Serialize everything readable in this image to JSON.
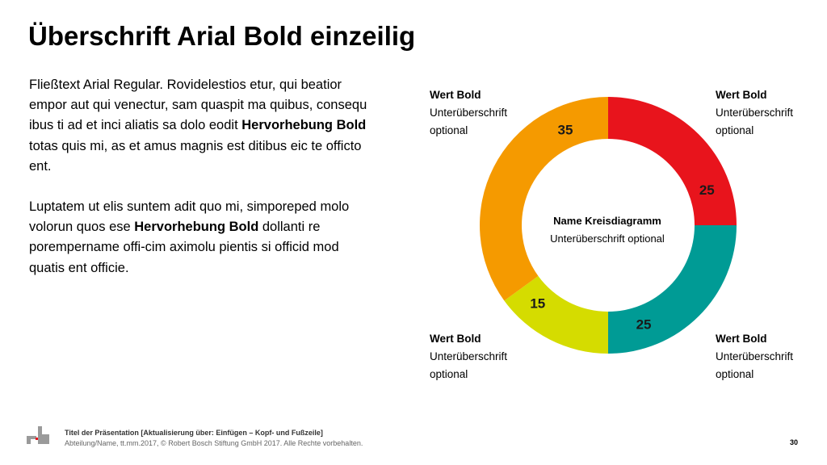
{
  "slide": {
    "title": "Überschrift Arial Bold einzeilig",
    "para1": {
      "before": "Fließtext Arial Regular. Rovidelestios etur, qui beatior empor aut qui venectur, sam quaspit ma quibus, consequ ibus ti ad et inci aliatis sa dolo eodit ",
      "bold": "Hervorhebung Bold",
      "after": " totas quis mi, as et amus magnis est ditibus eic te officto ent."
    },
    "para2": {
      "before": "Luptatem ut elis suntem adit quo mi, simporeped molo volorun quos ese ",
      "bold": "Hervorhebung Bold",
      "after": " dollanti re porempername offi-cim aximolu pientis si officid mod quatis ent officie."
    }
  },
  "callouts": {
    "top_left": {
      "value": "Wert Bold",
      "line1": "Unterüberschrift",
      "line2": "optional"
    },
    "top_right": {
      "value": "Wert Bold",
      "line1": "Unterüberschrift",
      "line2": "optional"
    },
    "bottom_left": {
      "value": "Wert Bold",
      "line1": "Unterüberschrift",
      "line2": "optional"
    },
    "bottom_right": {
      "value": "Wert Bold",
      "line1": "Unterüberschrift",
      "line2": "optional"
    }
  },
  "chart_data": {
    "type": "pie",
    "donut": true,
    "title": "Name Kreisdiagramm",
    "subtitle": "Unterüberschrift optional",
    "slices": [
      {
        "value": 25,
        "color": "#e8141c"
      },
      {
        "value": 25,
        "color": "#009b95"
      },
      {
        "value": 15,
        "color": "#d5dc00"
      },
      {
        "value": 35,
        "color": "#f59a00"
      }
    ],
    "labels": [
      "25",
      "25",
      "15",
      "35"
    ],
    "start_angle": "12 o'clock",
    "direction": "clockwise"
  },
  "footer": {
    "line1": "Titel der Präsentation [Aktualisierung über: Einfügen – Kopf- und Fußzeile]",
    "line2": "Abteilung/Name, tt.mm.2017, © Robert Bosch Stiftung GmbH 2017. Alle Rechte vorbehalten.",
    "page_number": "30",
    "logo_color": "#9a9a9a",
    "logo_accent": "#e8141c"
  }
}
